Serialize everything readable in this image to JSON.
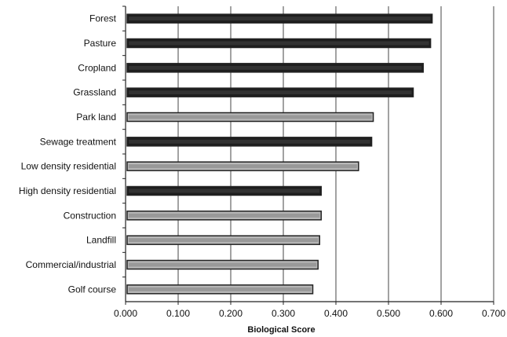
{
  "chart_data": {
    "type": "bar",
    "orientation": "horizontal",
    "title": "",
    "xlabel": "Biological Score",
    "ylabel": "",
    "xlim": [
      0,
      0.7
    ],
    "x_ticks": [
      "0.000",
      "0.100",
      "0.200",
      "0.300",
      "0.400",
      "0.500",
      "0.600",
      "0.700"
    ],
    "grid": "vertical lines at major ticks",
    "categories": [
      "Forest",
      "Pasture",
      "Cropland",
      "Grassland",
      "Park land",
      "Sewage treatment",
      "Low density residential",
      "High density residential",
      "Construction",
      "Landfill",
      "Commercial/industrial",
      "Golf course"
    ],
    "values": [
      0.583,
      0.58,
      0.566,
      0.547,
      0.471,
      0.468,
      0.443,
      0.372,
      0.372,
      0.369,
      0.366,
      0.356
    ],
    "colors": {
      "dark_fill": "#1e1e1e",
      "light_fill": "#b8b8b8",
      "outline": "#222222"
    },
    "fill_styles": [
      "dark",
      "dark",
      "dark",
      "dark",
      "light",
      "dark",
      "light",
      "dark",
      "light",
      "light",
      "light",
      "light"
    ]
  }
}
